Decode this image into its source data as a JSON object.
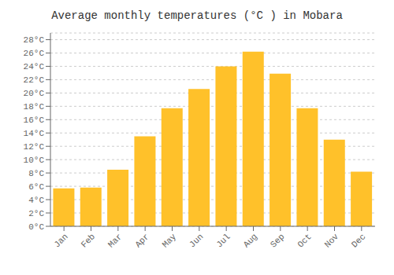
{
  "chart_data": {
    "type": "bar",
    "title": "Average monthly temperatures (°C ) in Mobara",
    "categories": [
      "Jan",
      "Feb",
      "Mar",
      "Apr",
      "May",
      "Jun",
      "Jul",
      "Aug",
      "Sep",
      "Oct",
      "Nov",
      "Dec"
    ],
    "values": [
      5.7,
      5.8,
      8.5,
      13.5,
      17.7,
      20.6,
      24.0,
      26.2,
      22.9,
      17.7,
      13.0,
      8.2
    ],
    "color": "#FFC12A",
    "ylim": [
      0,
      29
    ],
    "yticks": [
      {
        "value": 0,
        "label": "0°C"
      },
      {
        "value": 2,
        "label": "2°C"
      },
      {
        "value": 4,
        "label": "4°C"
      },
      {
        "value": 6,
        "label": "6°C"
      },
      {
        "value": 8,
        "label": "8°C"
      },
      {
        "value": 10,
        "label": "10°C"
      },
      {
        "value": 12,
        "label": "12°C"
      },
      {
        "value": 14,
        "label": "14°C"
      },
      {
        "value": 16,
        "label": "16°C"
      },
      {
        "value": 18,
        "label": "18°C"
      },
      {
        "value": 20,
        "label": "20°C"
      },
      {
        "value": 22,
        "label": "22°C"
      },
      {
        "value": 24,
        "label": "24°C"
      },
      {
        "value": 26,
        "label": "26°C"
      },
      {
        "value": 28,
        "label": "28°C"
      }
    ],
    "grid": true
  }
}
